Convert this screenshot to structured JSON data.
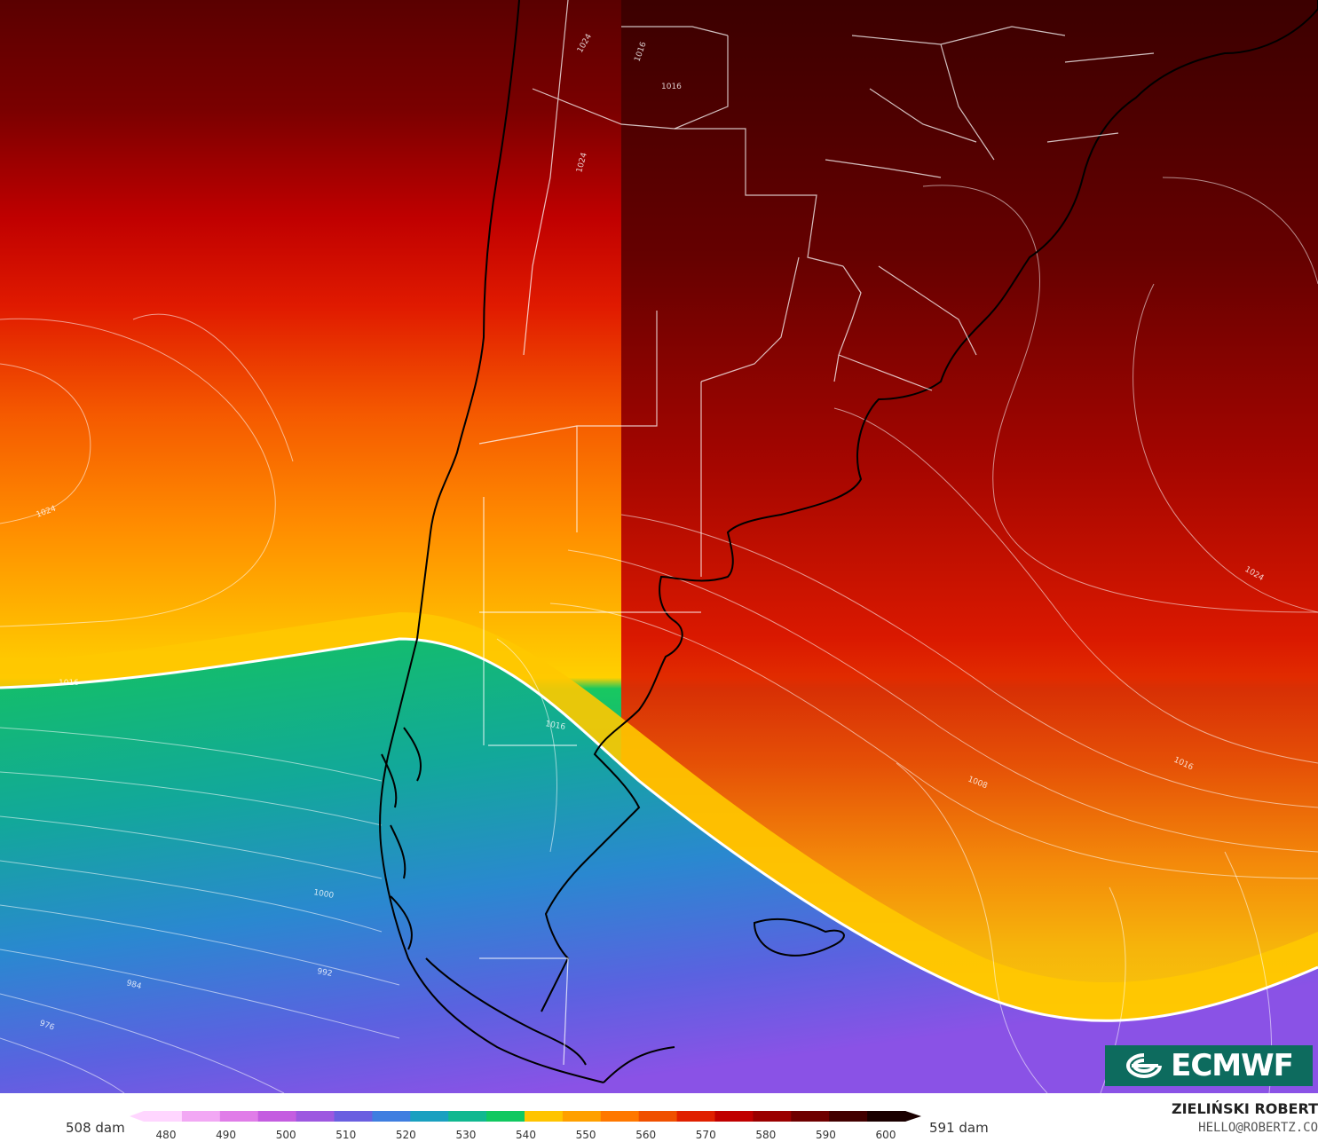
{
  "map": {
    "colorbar": {
      "min_label": "508 dam",
      "max_label": "591 dam",
      "ticks": [
        "480",
        "490",
        "500",
        "510",
        "520",
        "530",
        "540",
        "550",
        "560",
        "570",
        "580",
        "590",
        "600"
      ],
      "colors": [
        "#ffd6ff",
        "#f2a8f4",
        "#e07de8",
        "#c45de0",
        "#9d58e0",
        "#6a5fe0",
        "#3f7ee0",
        "#1aa0c0",
        "#10b890",
        "#10c860",
        "#ffc400",
        "#ffa000",
        "#ff7800",
        "#f05000",
        "#e02000",
        "#c00000",
        "#9a0000",
        "#6e0000",
        "#420000",
        "#1a0000"
      ]
    },
    "contour_labels": [
      {
        "text": "1024",
        "rot": -60
      },
      {
        "text": "1016",
        "rot": -70
      },
      {
        "text": "1016",
        "rot": 0
      },
      {
        "text": "1024",
        "rot": -75
      },
      {
        "text": "1024",
        "rot": 30
      },
      {
        "text": "1016",
        "rot": 25
      },
      {
        "text": "1008",
        "rot": 22
      },
      {
        "text": "1016",
        "rot": 0
      },
      {
        "text": "1016",
        "rot": 10
      },
      {
        "text": "1000",
        "rot": 10
      },
      {
        "text": "992",
        "rot": 10
      },
      {
        "text": "984",
        "rot": 15
      },
      {
        "text": "976",
        "rot": 20
      },
      {
        "text": "1024",
        "rot": -20
      }
    ],
    "brand": "ECMWF",
    "author": "ZIELIŃSKI ROBERT",
    "email": "HELLO@ROBERTZ.CO"
  }
}
